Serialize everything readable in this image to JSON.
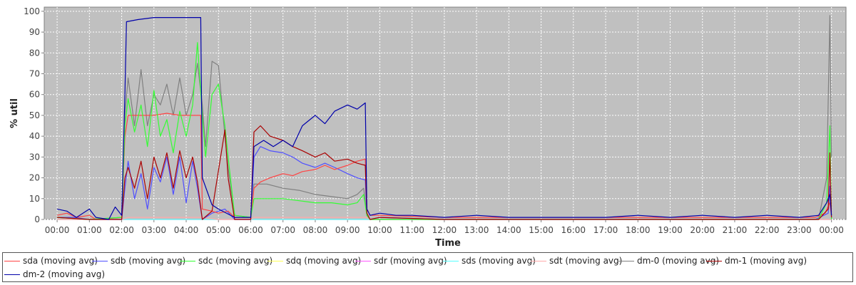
{
  "chart_data": {
    "type": "line",
    "title": "",
    "xlabel": "Time",
    "ylabel": "% util",
    "ylim": [
      0,
      102
    ],
    "yticks": [
      0,
      10,
      20,
      30,
      40,
      50,
      60,
      70,
      80,
      90,
      100
    ],
    "xticks": [
      "00:00",
      "01:00",
      "02:00",
      "03:00",
      "04:00",
      "05:00",
      "06:00",
      "07:00",
      "08:00",
      "09:00",
      "10:00",
      "11:00",
      "12:00",
      "13:00",
      "14:00",
      "15:00",
      "16:00",
      "17:00",
      "18:00",
      "19:00",
      "20:00",
      "21:00",
      "22:00",
      "23:00",
      "00:00"
    ],
    "x_hours_range": [
      -0.4,
      24.45
    ],
    "grid": true,
    "legend_position": "bottom",
    "background": "#c0c0c0",
    "series": [
      {
        "name": "sda (moving avg)",
        "color": "#ff4444",
        "points": [
          [
            0,
            2
          ],
          [
            0.3,
            3
          ],
          [
            0.6,
            1
          ],
          [
            1.0,
            2
          ],
          [
            1.2,
            0
          ],
          [
            2.0,
            1
          ],
          [
            2.1,
            40
          ],
          [
            2.2,
            50
          ],
          [
            2.6,
            50
          ],
          [
            3.0,
            50
          ],
          [
            3.4,
            51
          ],
          [
            3.8,
            50
          ],
          [
            4.0,
            50
          ],
          [
            4.3,
            50
          ],
          [
            4.45,
            50
          ],
          [
            4.5,
            5
          ],
          [
            4.8,
            4
          ],
          [
            5.0,
            3
          ],
          [
            5.3,
            4
          ],
          [
            5.5,
            1
          ],
          [
            6.0,
            1
          ],
          [
            6.1,
            15
          ],
          [
            6.3,
            18
          ],
          [
            6.6,
            20
          ],
          [
            7.0,
            22
          ],
          [
            7.3,
            21
          ],
          [
            7.6,
            23
          ],
          [
            8.0,
            24
          ],
          [
            8.3,
            26
          ],
          [
            8.6,
            24
          ],
          [
            9.0,
            26
          ],
          [
            9.3,
            28
          ],
          [
            9.55,
            29
          ],
          [
            9.6,
            5
          ],
          [
            9.7,
            2
          ],
          [
            10,
            2
          ],
          [
            12,
            1
          ],
          [
            14,
            1
          ],
          [
            16,
            1
          ],
          [
            18,
            1
          ],
          [
            20,
            1
          ],
          [
            22,
            1
          ],
          [
            23.5,
            1
          ],
          [
            23.8,
            3
          ],
          [
            23.95,
            8
          ],
          [
            24.0,
            2
          ]
        ]
      },
      {
        "name": "sdb (moving avg)",
        "color": "#4f4fff",
        "points": [
          [
            0,
            1
          ],
          [
            0.5,
            1
          ],
          [
            1.0,
            0
          ],
          [
            2.0,
            0
          ],
          [
            2.1,
            15
          ],
          [
            2.2,
            28
          ],
          [
            2.4,
            10
          ],
          [
            2.6,
            22
          ],
          [
            2.8,
            5
          ],
          [
            3.0,
            25
          ],
          [
            3.2,
            18
          ],
          [
            3.4,
            30
          ],
          [
            3.6,
            12
          ],
          [
            3.8,
            30
          ],
          [
            4.0,
            8
          ],
          [
            4.2,
            28
          ],
          [
            4.35,
            15
          ],
          [
            4.5,
            0
          ],
          [
            4.8,
            3
          ],
          [
            5.2,
            5
          ],
          [
            5.5,
            0
          ],
          [
            6.0,
            0
          ],
          [
            6.1,
            30
          ],
          [
            6.3,
            35
          ],
          [
            6.6,
            33
          ],
          [
            7.0,
            32
          ],
          [
            7.3,
            30
          ],
          [
            7.6,
            27
          ],
          [
            8.0,
            25
          ],
          [
            8.3,
            27
          ],
          [
            8.6,
            25
          ],
          [
            9.0,
            22
          ],
          [
            9.3,
            20
          ],
          [
            9.55,
            19
          ],
          [
            9.6,
            2
          ],
          [
            9.7,
            0
          ],
          [
            10,
            1
          ],
          [
            12,
            0
          ],
          [
            14,
            0
          ],
          [
            16,
            0
          ],
          [
            18,
            0
          ],
          [
            20,
            0
          ],
          [
            22,
            0
          ],
          [
            23.5,
            0
          ],
          [
            23.9,
            3
          ],
          [
            23.95,
            16
          ],
          [
            24.0,
            1
          ]
        ]
      },
      {
        "name": "sdc (moving avg)",
        "color": "#33ff33",
        "points": [
          [
            0,
            1
          ],
          [
            1.0,
            0
          ],
          [
            2.0,
            1
          ],
          [
            2.1,
            45
          ],
          [
            2.2,
            58
          ],
          [
            2.4,
            42
          ],
          [
            2.6,
            55
          ],
          [
            2.8,
            35
          ],
          [
            3.0,
            62
          ],
          [
            3.2,
            40
          ],
          [
            3.4,
            48
          ],
          [
            3.6,
            32
          ],
          [
            3.8,
            52
          ],
          [
            4.0,
            40
          ],
          [
            4.2,
            55
          ],
          [
            4.35,
            85
          ],
          [
            4.5,
            50
          ],
          [
            4.6,
            30
          ],
          [
            4.8,
            60
          ],
          [
            5.0,
            65
          ],
          [
            5.2,
            45
          ],
          [
            5.3,
            30
          ],
          [
            5.5,
            2
          ],
          [
            6.0,
            1
          ],
          [
            6.1,
            10
          ],
          [
            6.5,
            10
          ],
          [
            7.0,
            10
          ],
          [
            7.5,
            9
          ],
          [
            8.0,
            8
          ],
          [
            8.5,
            8
          ],
          [
            9.0,
            7
          ],
          [
            9.3,
            8
          ],
          [
            9.5,
            12
          ],
          [
            9.6,
            2
          ],
          [
            9.7,
            0
          ],
          [
            10,
            0
          ],
          [
            12,
            0
          ],
          [
            14,
            0
          ],
          [
            16,
            0
          ],
          [
            18,
            0
          ],
          [
            20,
            0
          ],
          [
            22,
            0
          ],
          [
            23.6,
            0
          ],
          [
            23.85,
            8
          ],
          [
            23.95,
            45
          ],
          [
            24.0,
            0
          ]
        ]
      },
      {
        "name": "sdq (moving avg)",
        "color": "#ffff55",
        "points": [
          [
            0,
            0
          ],
          [
            12,
            0
          ],
          [
            24.0,
            0
          ]
        ]
      },
      {
        "name": "sdr (moving avg)",
        "color": "#ff55ff",
        "points": [
          [
            0,
            0
          ],
          [
            12,
            0
          ],
          [
            24.0,
            0
          ]
        ]
      },
      {
        "name": "sds (moving avg)",
        "color": "#55ffff",
        "points": [
          [
            0,
            0
          ],
          [
            12,
            0
          ],
          [
            24.0,
            0
          ]
        ]
      },
      {
        "name": "sdt (moving avg)",
        "color": "#ffaaaa",
        "points": [
          [
            0,
            0
          ],
          [
            2.0,
            0
          ],
          [
            2.2,
            1
          ],
          [
            4.5,
            1
          ],
          [
            5.0,
            0
          ],
          [
            6.0,
            0
          ],
          [
            6.1,
            1
          ],
          [
            9.6,
            1
          ],
          [
            9.7,
            0
          ],
          [
            24.0,
            0
          ]
        ]
      },
      {
        "name": "dm-0 (moving avg)",
        "color": "#808080",
        "points": [
          [
            0,
            1
          ],
          [
            1.0,
            0
          ],
          [
            2.0,
            1
          ],
          [
            2.1,
            50
          ],
          [
            2.2,
            68
          ],
          [
            2.4,
            45
          ],
          [
            2.6,
            72
          ],
          [
            2.8,
            45
          ],
          [
            3.0,
            60
          ],
          [
            3.2,
            55
          ],
          [
            3.4,
            65
          ],
          [
            3.6,
            50
          ],
          [
            3.8,
            68
          ],
          [
            4.0,
            50
          ],
          [
            4.2,
            60
          ],
          [
            4.35,
            75
          ],
          [
            4.5,
            55
          ],
          [
            4.6,
            35
          ],
          [
            4.8,
            76
          ],
          [
            5.0,
            74
          ],
          [
            5.2,
            40
          ],
          [
            5.3,
            25
          ],
          [
            5.5,
            2
          ],
          [
            6.0,
            1
          ],
          [
            6.1,
            17
          ],
          [
            6.5,
            17
          ],
          [
            7.0,
            15
          ],
          [
            7.5,
            14
          ],
          [
            8.0,
            12
          ],
          [
            8.5,
            11
          ],
          [
            9.0,
            10
          ],
          [
            9.3,
            12
          ],
          [
            9.5,
            15
          ],
          [
            9.6,
            2
          ],
          [
            9.7,
            0
          ],
          [
            10,
            0
          ],
          [
            12,
            0
          ],
          [
            14,
            0
          ],
          [
            16,
            0
          ],
          [
            18,
            0
          ],
          [
            20,
            0
          ],
          [
            22,
            0
          ],
          [
            23.6,
            0
          ],
          [
            23.85,
            20
          ],
          [
            23.95,
            98
          ],
          [
            24.0,
            30
          ]
        ]
      },
      {
        "name": "dm-1 (moving avg)",
        "color": "#aa0000",
        "points": [
          [
            0,
            1
          ],
          [
            1.0,
            0
          ],
          [
            2.0,
            0
          ],
          [
            2.1,
            20
          ],
          [
            2.2,
            25
          ],
          [
            2.4,
            15
          ],
          [
            2.6,
            28
          ],
          [
            2.8,
            10
          ],
          [
            3.0,
            30
          ],
          [
            3.2,
            20
          ],
          [
            3.4,
            32
          ],
          [
            3.6,
            15
          ],
          [
            3.8,
            33
          ],
          [
            4.0,
            20
          ],
          [
            4.2,
            30
          ],
          [
            4.35,
            18
          ],
          [
            4.5,
            0
          ],
          [
            4.8,
            4
          ],
          [
            5.2,
            43
          ],
          [
            5.3,
            20
          ],
          [
            5.5,
            0
          ],
          [
            6.0,
            0
          ],
          [
            6.1,
            42
          ],
          [
            6.3,
            45
          ],
          [
            6.6,
            40
          ],
          [
            7.0,
            38
          ],
          [
            7.3,
            35
          ],
          [
            7.6,
            33
          ],
          [
            8.0,
            30
          ],
          [
            8.3,
            32
          ],
          [
            8.6,
            28
          ],
          [
            9.0,
            29
          ],
          [
            9.3,
            27
          ],
          [
            9.55,
            26
          ],
          [
            9.6,
            3
          ],
          [
            9.7,
            0
          ],
          [
            10,
            1
          ],
          [
            12,
            0
          ],
          [
            14,
            0
          ],
          [
            16,
            0
          ],
          [
            18,
            0
          ],
          [
            20,
            0
          ],
          [
            22,
            0
          ],
          [
            23.6,
            0
          ],
          [
            23.9,
            5
          ],
          [
            23.95,
            32
          ],
          [
            24.0,
            1
          ]
        ]
      },
      {
        "name": "dm-2 (moving avg)",
        "color": "#0000aa",
        "points": [
          [
            0,
            5
          ],
          [
            0.3,
            4
          ],
          [
            0.6,
            1
          ],
          [
            1.0,
            5
          ],
          [
            1.2,
            1
          ],
          [
            1.6,
            0
          ],
          [
            1.8,
            6
          ],
          [
            2.0,
            2
          ],
          [
            2.1,
            60
          ],
          [
            2.15,
            95
          ],
          [
            2.5,
            96
          ],
          [
            3.0,
            97
          ],
          [
            3.5,
            97
          ],
          [
            4.0,
            97
          ],
          [
            4.45,
            97
          ],
          [
            4.5,
            20
          ],
          [
            4.8,
            7
          ],
          [
            5.0,
            5
          ],
          [
            5.5,
            1
          ],
          [
            6.0,
            1
          ],
          [
            6.1,
            35
          ],
          [
            6.4,
            38
          ],
          [
            6.7,
            35
          ],
          [
            7.0,
            38
          ],
          [
            7.3,
            35
          ],
          [
            7.6,
            45
          ],
          [
            8.0,
            50
          ],
          [
            8.3,
            46
          ],
          [
            8.6,
            52
          ],
          [
            9.0,
            55
          ],
          [
            9.3,
            53
          ],
          [
            9.55,
            56
          ],
          [
            9.6,
            5
          ],
          [
            9.7,
            2
          ],
          [
            10,
            3
          ],
          [
            10.5,
            2
          ],
          [
            11,
            2
          ],
          [
            12,
            1
          ],
          [
            13,
            2
          ],
          [
            14,
            1
          ],
          [
            15,
            1
          ],
          [
            16,
            1
          ],
          [
            17,
            1
          ],
          [
            18,
            2
          ],
          [
            19,
            1
          ],
          [
            20,
            2
          ],
          [
            21,
            1
          ],
          [
            22,
            2
          ],
          [
            23,
            1
          ],
          [
            23.6,
            2
          ],
          [
            23.85,
            8
          ],
          [
            23.95,
            12
          ],
          [
            24.0,
            2
          ]
        ]
      }
    ]
  }
}
